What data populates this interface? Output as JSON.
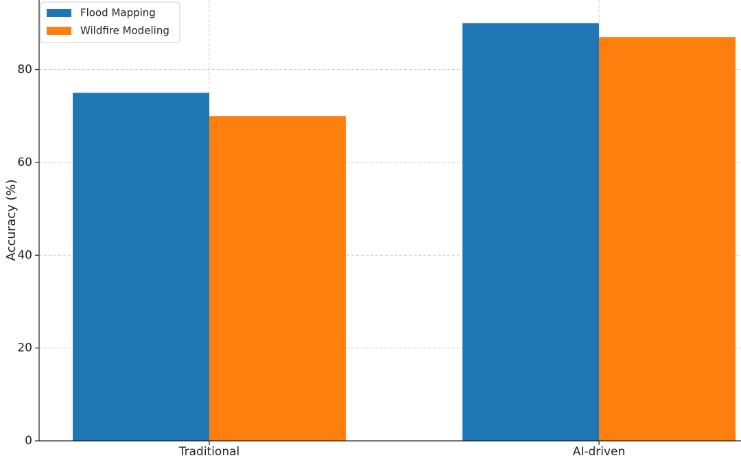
{
  "chart_data": {
    "type": "bar",
    "title": "",
    "xlabel": "",
    "ylabel": "Accuracy (%)",
    "categories": [
      "Traditional",
      "AI-driven"
    ],
    "series": [
      {
        "name": "Flood Mapping",
        "values": [
          75,
          90
        ],
        "color": "#1f77b4"
      },
      {
        "name": "Wildfire Modeling",
        "values": [
          70,
          87
        ],
        "color": "#ff7f0e"
      }
    ],
    "ylim": [
      0,
      95
    ],
    "yticks": [
      0,
      20,
      40,
      60,
      80
    ],
    "grid": true,
    "legend_position": "top-left"
  }
}
